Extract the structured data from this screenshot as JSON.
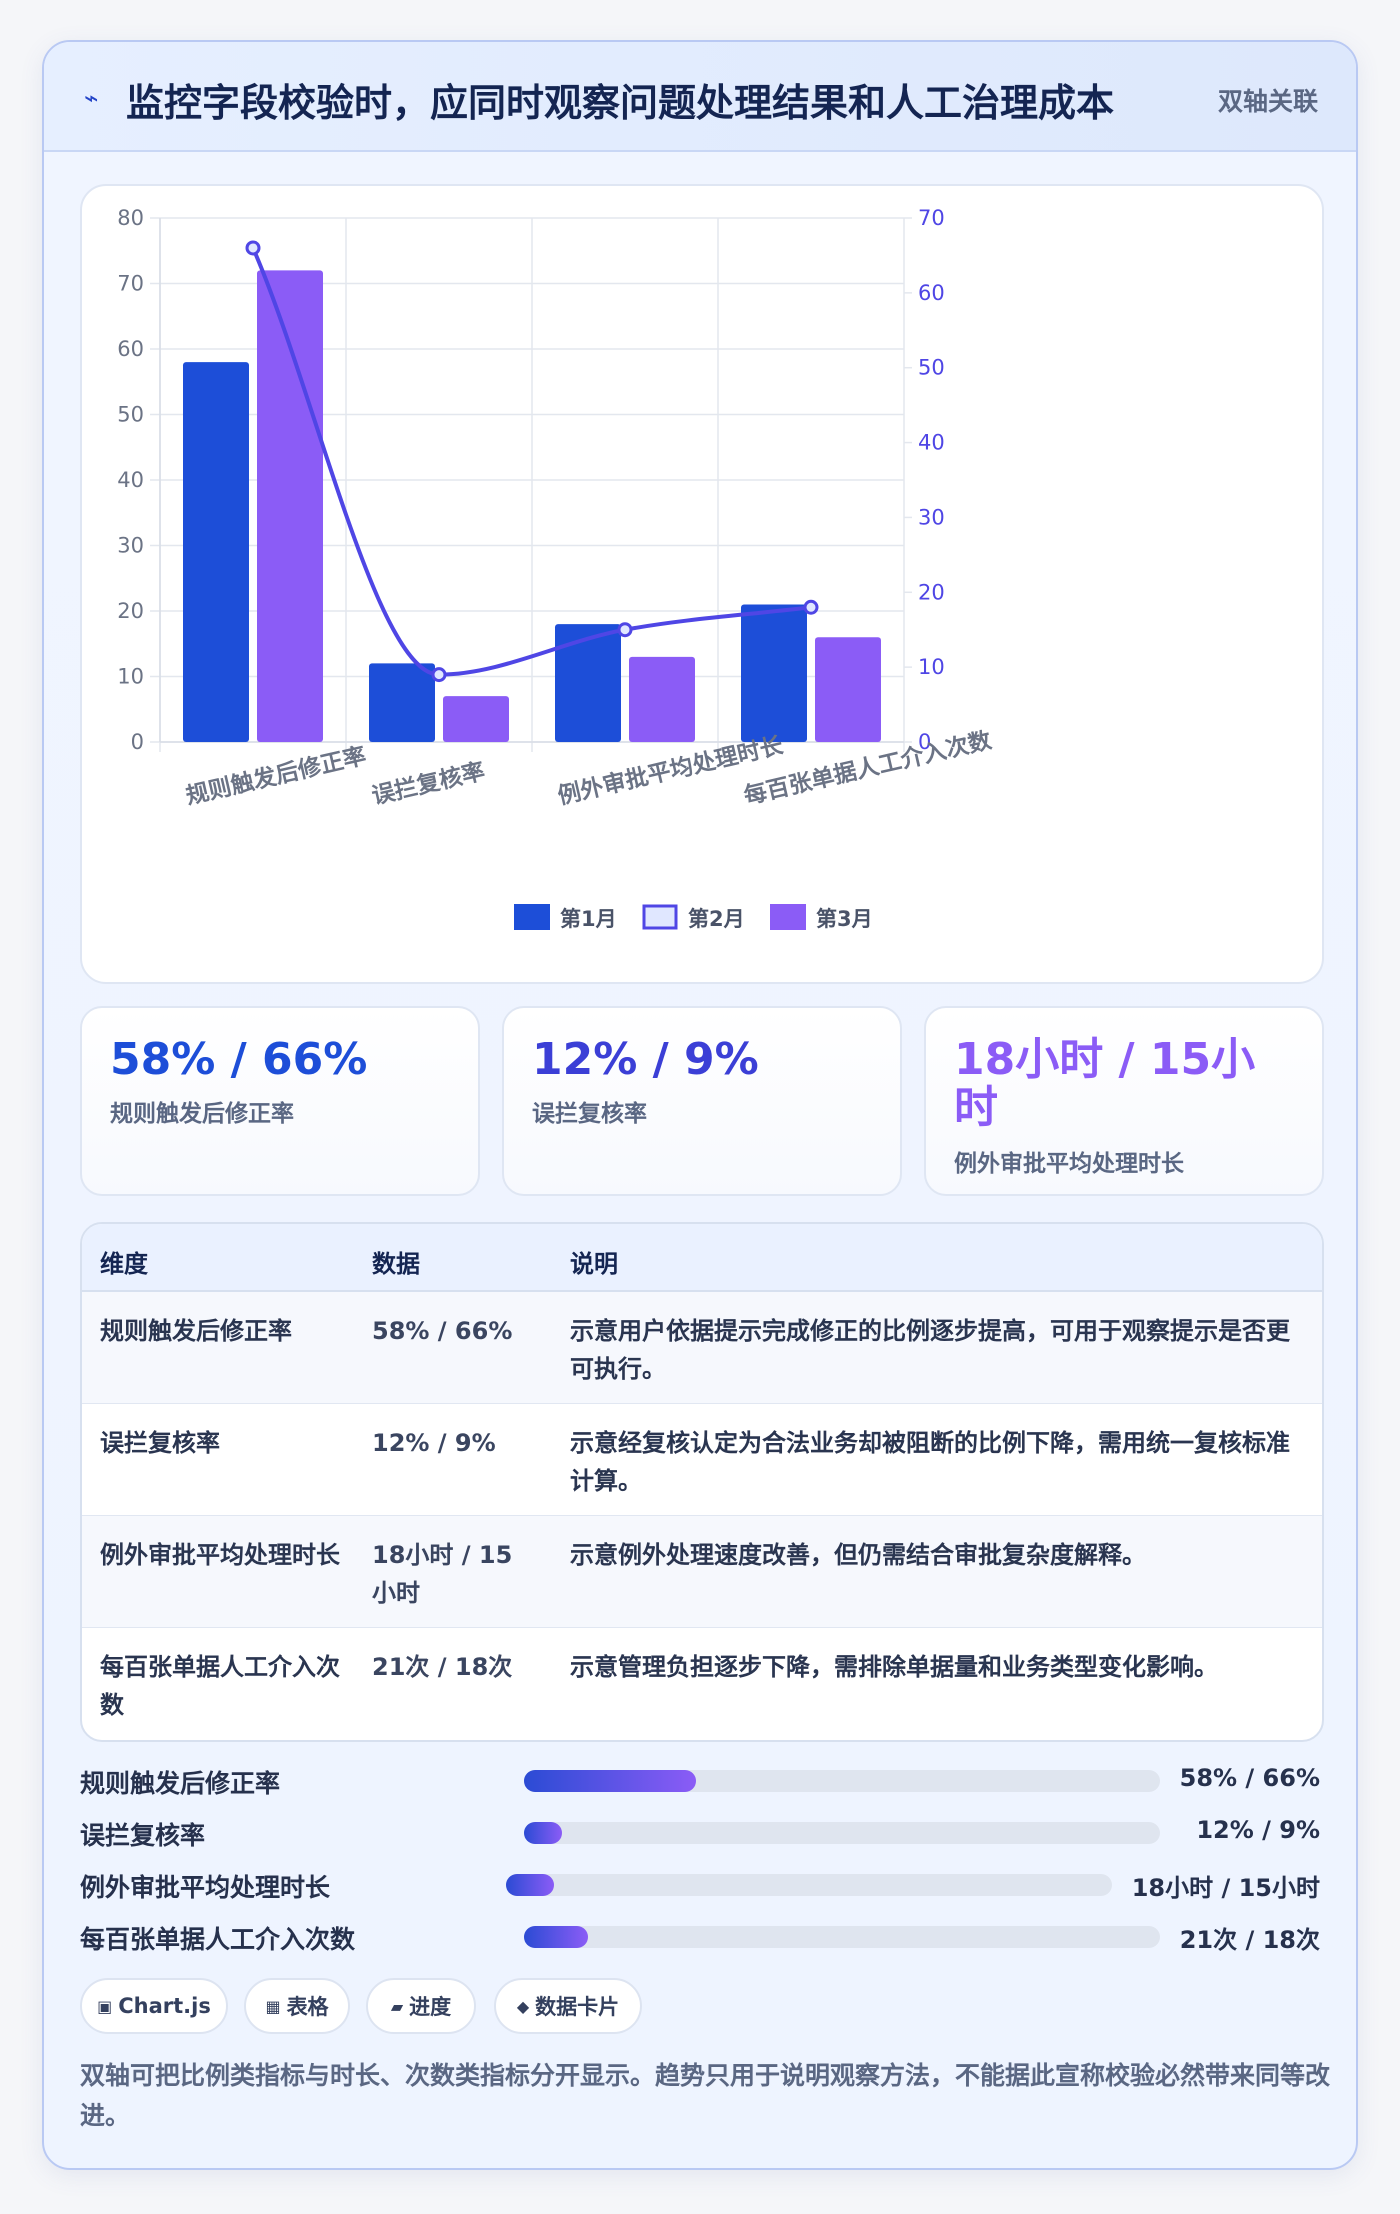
{
  "header": {
    "icon": "lightning-icon",
    "title": "监控字段校验时，应同时观察问题处理结果和人工治理成本",
    "badge": "双轴关联"
  },
  "chart_data": {
    "type": "bar",
    "categories": [
      "规则触发后修正率",
      "误拦复核率",
      "例外审批平均处理时长",
      "每百张单据人工介入次数"
    ],
    "series": [
      {
        "name": "第1月",
        "type": "bar",
        "axis": "left",
        "values": [
          58,
          12,
          18,
          21
        ],
        "color": "#1d4ed8"
      },
      {
        "name": "第2月",
        "type": "line",
        "axis": "right",
        "values": [
          66,
          9,
          15,
          18
        ],
        "color": "#4f46e5"
      },
      {
        "name": "第3月",
        "type": "bar",
        "axis": "left",
        "values": [
          72,
          7,
          13,
          16
        ],
        "color": "#8b5cf6"
      }
    ],
    "y_left": {
      "min": 0,
      "max": 80,
      "ticks": [
        "0",
        "10",
        "20",
        "30",
        "40",
        "50",
        "60",
        "70",
        "80"
      ]
    },
    "y_right": {
      "min": 0,
      "max": 70,
      "ticks": [
        "0",
        "10",
        "20",
        "30",
        "40",
        "50",
        "60",
        "70"
      ]
    },
    "grid": true,
    "legend": "bottom"
  },
  "kpis": [
    {
      "value": "58% / 66%",
      "label": "规则触发后修正率",
      "color": "#1d4ed8"
    },
    {
      "value": "12% / 9%",
      "label": "误拦复核率",
      "color": "#3b3fd6"
    },
    {
      "value": "18小时 / 15小时",
      "label": "例外审批平均处理时长",
      "color": "#8b5cf6"
    }
  ],
  "table": {
    "headers": [
      "维度",
      "数据",
      "说明"
    ],
    "rows": [
      [
        "规则触发后修正率",
        "58% / 66%",
        "示意用户依据提示完成修正的比例逐步提高，可用于观察提示是否更可执行。"
      ],
      [
        "误拦复核率",
        "12% / 9%",
        "示意经复核认定为合法业务却被阻断的比例下降，需用统一复核标准计算。"
      ],
      [
        "例外审批平均处理时长",
        "18小时 / 15小时",
        "示意例外处理速度改善，但仍需结合审批复杂度解释。"
      ],
      [
        "每百张单据人工介入次数",
        "21次 / 18次",
        "示意管理负担逐步下降，需排除单据量和业务类型变化影响。"
      ]
    ]
  },
  "progress": [
    {
      "label": "规则触发后修正率",
      "value": "58% / 66%",
      "fill": 0.27
    },
    {
      "label": "误拦复核率",
      "value": "12% / 9%",
      "fill": 0.06
    },
    {
      "label": "例外审批平均处理时长",
      "value": "18小时 / 15小时",
      "fill": 0.08
    },
    {
      "label": "每百张单据人工介入次数",
      "value": "21次 / 18次",
      "fill": 0.1
    }
  ],
  "tags": [
    {
      "icon": "chart-icon",
      "glyph": "▣",
      "label": "Chart.js"
    },
    {
      "icon": "grid-icon",
      "glyph": "▦",
      "label": "表格"
    },
    {
      "icon": "progress-icon",
      "glyph": "▰",
      "label": "进度"
    },
    {
      "icon": "diamond-icon",
      "glyph": "◆",
      "label": "数据卡片"
    }
  ],
  "note": "双轴可把比例类指标与时长、次数类指标分开显示。趋势只用于说明观察方法，不能据此宣称校验必然带来同等改进。"
}
